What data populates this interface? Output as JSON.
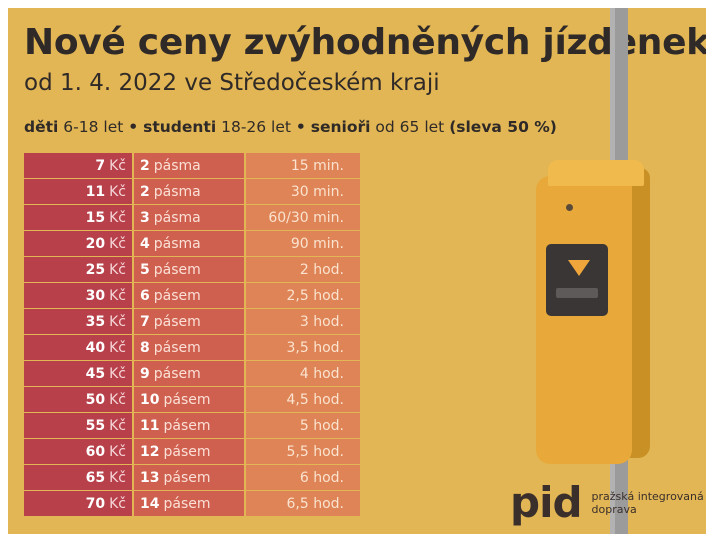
{
  "title": "Nové ceny zvýhodněných jízdenek PID",
  "subtitle": "od 1. 4. 2022 ve Středočeském kraji",
  "eligibility": {
    "kids_label": "děti",
    "kids_age": "6-18 let",
    "sep": "•",
    "students_label": "studenti",
    "students_age": "18-26 let",
    "seniors_label": "senioři",
    "seniors_age": "od 65 let",
    "discount": "(sleva 50 %)"
  },
  "currency": "Kč",
  "rows": [
    {
      "price": "7",
      "zones": "2",
      "zone_word": "pásma",
      "time": "15 min."
    },
    {
      "price": "11",
      "zones": "2",
      "zone_word": "pásma",
      "time": "30 min."
    },
    {
      "price": "15",
      "zones": "3",
      "zone_word": "pásma",
      "time": "60/30 min."
    },
    {
      "price": "20",
      "zones": "4",
      "zone_word": "pásma",
      "time": "90 min."
    },
    {
      "price": "25",
      "zones": "5",
      "zone_word": "pásem",
      "time": "2 hod."
    },
    {
      "price": "30",
      "zones": "6",
      "zone_word": "pásem",
      "time": "2,5 hod."
    },
    {
      "price": "35",
      "zones": "7",
      "zone_word": "pásem",
      "time": "3 hod."
    },
    {
      "price": "40",
      "zones": "8",
      "zone_word": "pásem",
      "time": "3,5 hod."
    },
    {
      "price": "45",
      "zones": "9",
      "zone_word": "pásem",
      "time": "4 hod."
    },
    {
      "price": "50",
      "zones": "10",
      "zone_word": "pásem",
      "time": "4,5 hod."
    },
    {
      "price": "55",
      "zones": "11",
      "zone_word": "pásem",
      "time": "5 hod."
    },
    {
      "price": "60",
      "zones": "12",
      "zone_word": "pásem",
      "time": "5,5 hod."
    },
    {
      "price": "65",
      "zones": "13",
      "zone_word": "pásem",
      "time": "6 hod."
    },
    {
      "price": "70",
      "zones": "14",
      "zone_word": "pásem",
      "time": "6,5 hod."
    }
  ],
  "logo": {
    "mark": "pid",
    "line1": "pražská integrovaná",
    "line2": "doprava"
  },
  "colors": {
    "background": "#e2b654",
    "price_column": "#b7404a",
    "zone_column": "#cf6050",
    "time_column": "#de8456"
  }
}
